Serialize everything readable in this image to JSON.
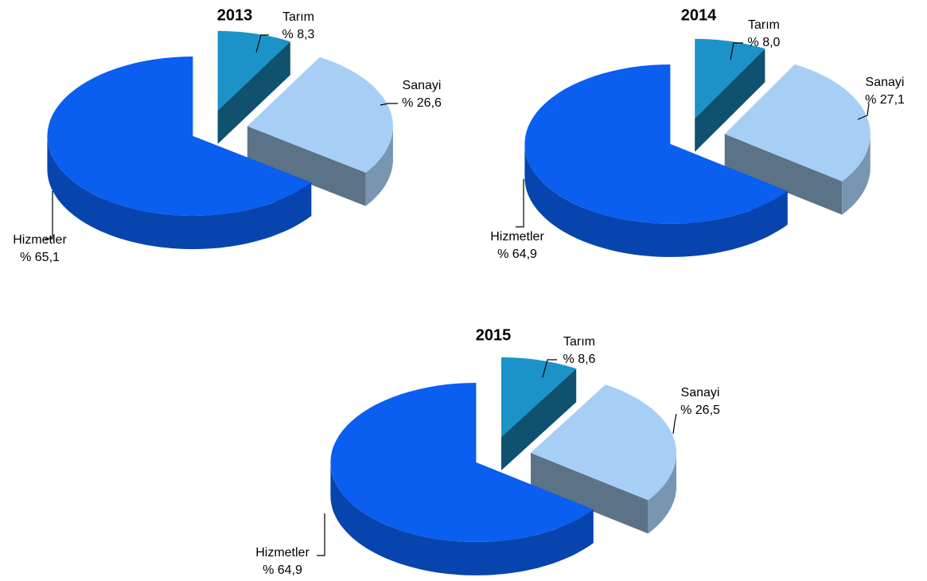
{
  "chart_data": [
    {
      "type": "pie",
      "title": "2013",
      "categories": [
        "Tarım",
        "Sanayi",
        "Hizmetler"
      ],
      "values": [
        8.3,
        26.6,
        65.1
      ],
      "value_labels": [
        "% 8,3",
        "% 26,6",
        "% 65,1"
      ],
      "colors": [
        "#1b93c9",
        "#a7cff6",
        "#0a5ef0"
      ]
    },
    {
      "type": "pie",
      "title": "2014",
      "categories": [
        "Tarım",
        "Sanayi",
        "Hizmetler"
      ],
      "values": [
        8.0,
        27.1,
        64.9
      ],
      "value_labels": [
        "% 8,0",
        "% 27,1",
        "% 64,9"
      ],
      "colors": [
        "#1b93c9",
        "#a7cff6",
        "#0a5ef0"
      ]
    },
    {
      "type": "pie",
      "title": "2015",
      "categories": [
        "Tarım",
        "Sanayi",
        "Hizmetler"
      ],
      "values": [
        8.6,
        26.5,
        64.9
      ],
      "value_labels": [
        "% 8,6",
        "% 26,5",
        "% 64,9"
      ],
      "colors": [
        "#1b93c9",
        "#a7cff6",
        "#0a5ef0"
      ]
    }
  ]
}
